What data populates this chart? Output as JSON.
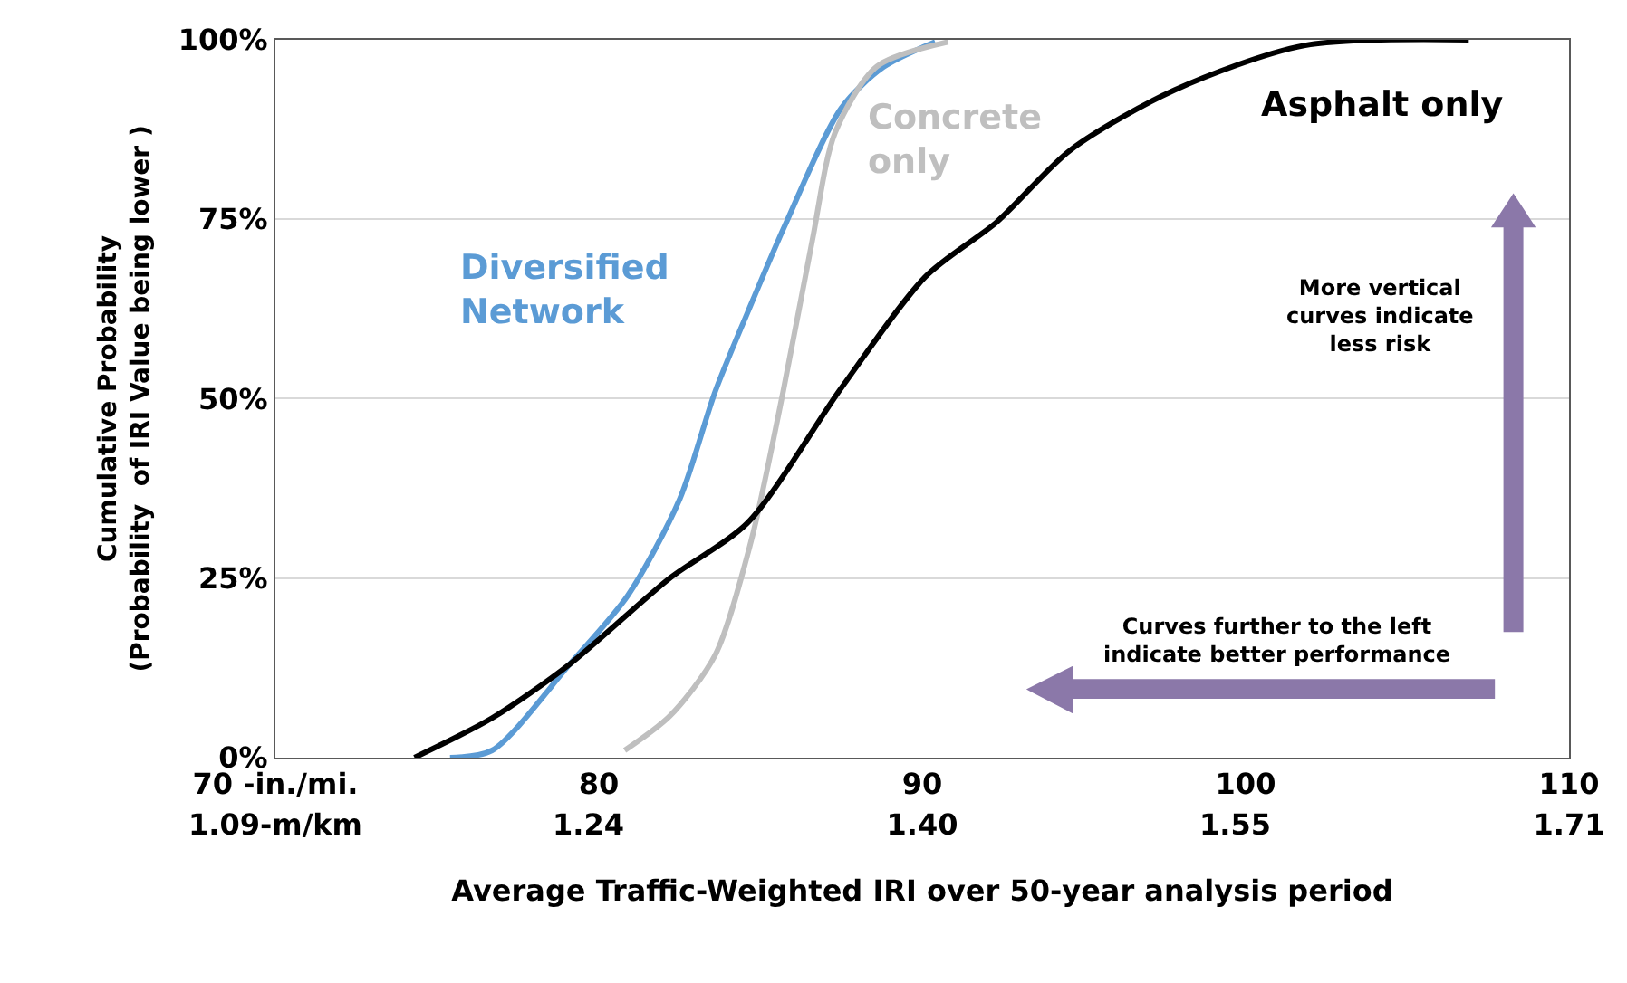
{
  "chart_data": {
    "type": "line",
    "xlabel": "Average Traffic-Weighted IRI over 50-year analysis period",
    "ylabel": "Cumulative Probability\n(Probability  of IRI Value being lower )",
    "xlim": [
      70,
      110
    ],
    "xticks": [
      {
        "value": 70,
        "label": "70 -in./mi."
      },
      80,
      90,
      100,
      110
    ],
    "x2lim": [
      1.09,
      1.71
    ],
    "x2ticks": [
      {
        "value": 1.09,
        "label": "1.09-m/km"
      },
      1.24,
      {
        "value": 1.4,
        "label": "1.40"
      },
      1.55,
      1.71
    ],
    "ylim": [
      0,
      100
    ],
    "yticks": [
      {
        "value": 0,
        "label": "0%"
      },
      {
        "value": 25,
        "label": "25%"
      },
      {
        "value": 50,
        "label": "50%"
      },
      {
        "value": 75,
        "label": "75%"
      },
      {
        "value": 100,
        "label": "100%"
      }
    ],
    "grid": "y",
    "legend": false,
    "marker": "none",
    "line_style": "solid",
    "series": [
      {
        "name": "Diversified\nNetwork",
        "color": "#5b9bd5",
        "x": [
          75.4,
          76.7,
          79.1,
          80.9,
          82.5,
          83.6,
          84.6,
          85.8,
          87.5,
          88.8,
          90.4
        ],
        "values": [
          0,
          1,
          13,
          22.6,
          36,
          51,
          62,
          74.6,
          90.5,
          96.2,
          99.7
        ]
      },
      {
        "name": "Concrete\nonly",
        "color": "#bfbfbf",
        "x": [
          80.8,
          82.2,
          83.6,
          84.7,
          85.7,
          86.6,
          87.3,
          88.6,
          90.8
        ],
        "values": [
          1,
          5.8,
          14.3,
          30,
          51,
          72,
          87,
          96.3,
          99.7
        ]
      },
      {
        "name": "Asphalt only",
        "color": "#000000",
        "x": [
          74.3,
          76.7,
          79.1,
          82.2,
          84.6,
          87.5,
          90.1,
          92.3,
          94.6,
          97.8,
          101.8,
          106.9
        ],
        "values": [
          0,
          5.5,
          13,
          25,
          32.7,
          51.5,
          67,
          74.6,
          84.7,
          93,
          99.2,
          100
        ]
      }
    ],
    "annotations": [
      "More vertical\ncurves indicate\nless risk",
      "Curves further to the left\nindicate better performance"
    ]
  }
}
